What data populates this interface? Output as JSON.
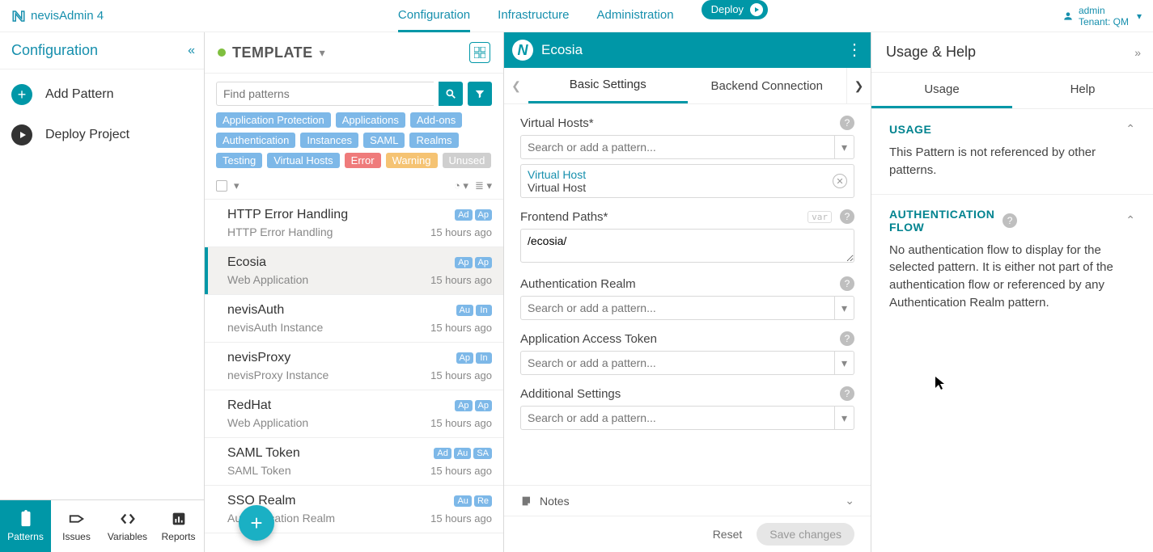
{
  "app": {
    "name": "nevisAdmin 4"
  },
  "topnav": {
    "items": [
      "Configuration",
      "Infrastructure",
      "Administration"
    ],
    "activeIndex": 0,
    "deploy_label": "Deploy"
  },
  "tenant": {
    "user": "admin",
    "label": "Tenant: QM"
  },
  "sidebar": {
    "title": "Configuration",
    "add_pattern": "Add Pattern",
    "deploy_project": "Deploy Project",
    "bottom_tabs": [
      "Patterns",
      "Issues",
      "Variables",
      "Reports"
    ],
    "bottom_active": 0
  },
  "patternList": {
    "project": "TEMPLATE",
    "search_placeholder": "Find patterns",
    "tags": [
      {
        "label": "Application Protection",
        "color": "#7db8e8"
      },
      {
        "label": "Applications",
        "color": "#7db8e8"
      },
      {
        "label": "Add-ons",
        "color": "#7db8e8"
      },
      {
        "label": "Authentication",
        "color": "#7db8e8"
      },
      {
        "label": "Instances",
        "color": "#7db8e8"
      },
      {
        "label": "SAML",
        "color": "#7db8e8"
      },
      {
        "label": "Realms",
        "color": "#7db8e8"
      },
      {
        "label": "Testing",
        "color": "#7db8e8"
      },
      {
        "label": "Virtual Hosts",
        "color": "#7db8e8"
      },
      {
        "label": "Error",
        "color": "#ef7b7b"
      },
      {
        "label": "Warning",
        "color": "#f5c373"
      },
      {
        "label": "Unused",
        "color": "#cfcfcf"
      }
    ],
    "items": [
      {
        "title": "HTTP Error Handling",
        "subtitle": "HTTP Error Handling",
        "time": "15 hours ago",
        "badges": [
          {
            "t": "Ad",
            "c": "#7db8e8"
          },
          {
            "t": "Ap",
            "c": "#7db8e8"
          }
        ],
        "selected": false
      },
      {
        "title": "Ecosia",
        "subtitle": "Web Application",
        "time": "15 hours ago",
        "badges": [
          {
            "t": "Ap",
            "c": "#7db8e8"
          },
          {
            "t": "Ap",
            "c": "#7db8e8"
          }
        ],
        "selected": true
      },
      {
        "title": "nevisAuth",
        "subtitle": "nevisAuth Instance",
        "time": "15 hours ago",
        "badges": [
          {
            "t": "Au",
            "c": "#7db8e8"
          },
          {
            "t": "In",
            "c": "#7db8e8"
          }
        ],
        "selected": false
      },
      {
        "title": "nevisProxy",
        "subtitle": "nevisProxy Instance",
        "time": "15 hours ago",
        "badges": [
          {
            "t": "Ap",
            "c": "#7db8e8"
          },
          {
            "t": "In",
            "c": "#7db8e8"
          }
        ],
        "selected": false
      },
      {
        "title": "RedHat",
        "subtitle": "Web Application",
        "time": "15 hours ago",
        "badges": [
          {
            "t": "Ap",
            "c": "#7db8e8"
          },
          {
            "t": "Ap",
            "c": "#7db8e8"
          }
        ],
        "selected": false
      },
      {
        "title": "SAML Token",
        "subtitle": "SAML Token",
        "time": "15 hours ago",
        "badges": [
          {
            "t": "Ad",
            "c": "#7db8e8"
          },
          {
            "t": "Au",
            "c": "#7db8e8"
          },
          {
            "t": "SA",
            "c": "#7db8e8"
          }
        ],
        "selected": false
      },
      {
        "title": "SSO Realm",
        "subtitle": "Authentication Realm",
        "time": "15 hours ago",
        "badges": [
          {
            "t": "Au",
            "c": "#7db8e8"
          },
          {
            "t": "Re",
            "c": "#7db8e8"
          }
        ],
        "selected": false
      }
    ]
  },
  "editor": {
    "title": "Ecosia",
    "tabs": [
      "Basic Settings",
      "Backend Connection"
    ],
    "tab_active": 0,
    "fields": {
      "virtual_hosts_label": "Virtual Hosts*",
      "virtual_hosts_placeholder": "Search or add a pattern...",
      "virtual_hosts_ref_name": "Virtual Host",
      "virtual_hosts_ref_type": "Virtual Host",
      "frontend_paths_label": "Frontend Paths*",
      "frontend_paths_value": "/ecosia/",
      "auth_realm_label": "Authentication Realm",
      "auth_realm_placeholder": "Search or add a pattern...",
      "app_token_label": "Application Access Token",
      "app_token_placeholder": "Search or add a pattern...",
      "additional_label": "Additional Settings",
      "additional_placeholder": "Search or add a pattern..."
    },
    "notes_label": "Notes",
    "reset_label": "Reset",
    "save_label": "Save changes"
  },
  "rightPanel": {
    "title": "Usage & Help",
    "tabs": [
      "Usage",
      "Help"
    ],
    "tab_active": 0,
    "sections": {
      "usage_heading": "USAGE",
      "usage_text": "This Pattern is not referenced by other patterns.",
      "auth_heading": "AUTHENTICATION FLOW",
      "auth_text": "No authentication flow to display for the selected pattern. It is either not part of the authentication flow or referenced by any Authentication Realm pattern."
    }
  }
}
